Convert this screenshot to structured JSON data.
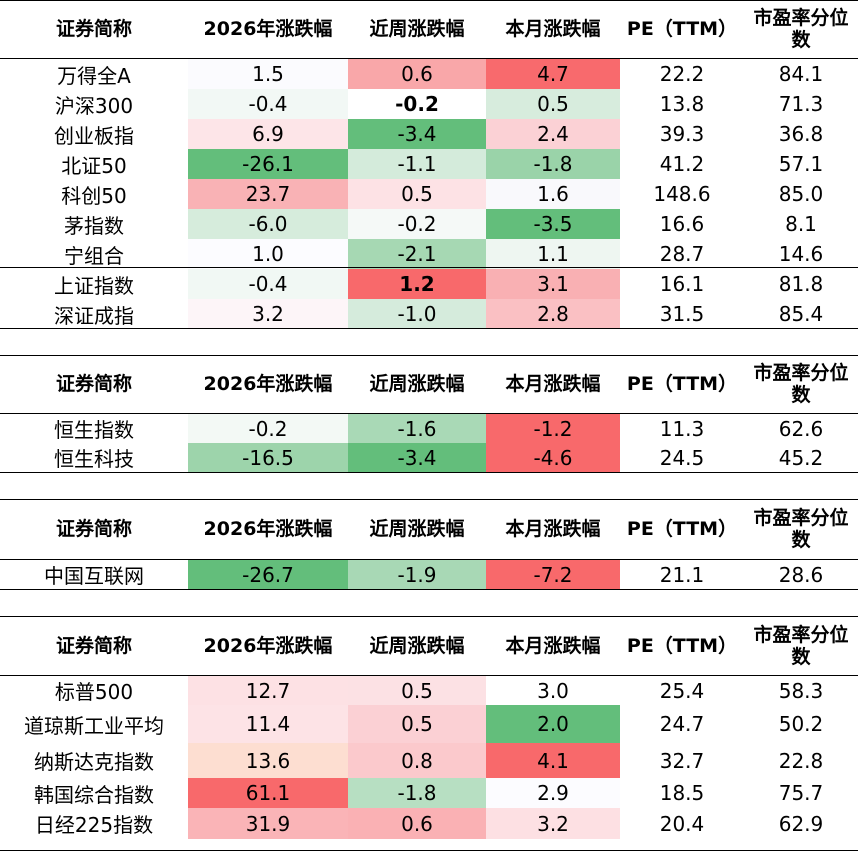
{
  "columns": [
    "证券简称",
    "2026年涨跌幅",
    "近周涨跌幅",
    "本月涨跌幅",
    "PE（TTM）",
    "市盈率分位数"
  ],
  "tables": [
    {
      "rows": [
        {
          "name": "万得全A",
          "ytd": "1.5",
          "week": "0.6",
          "month": "4.7",
          "pe": "22.2",
          "pct": "84.1",
          "colors": [
            "#fbfbfe",
            "#f9a7a9",
            "#f86a6d"
          ]
        },
        {
          "name": "沪深300",
          "ytd": "-0.4",
          "week": "-0.2",
          "month": "0.5",
          "pe": "13.8",
          "pct": "71.3",
          "colors": [
            "#f2f8f5",
            "#ffffff",
            "#d7ecdd"
          ],
          "bold": [
            false,
            true,
            false
          ]
        },
        {
          "name": "创业板指",
          "ytd": "6.9",
          "week": "-3.4",
          "month": "2.4",
          "pe": "39.3",
          "pct": "36.8",
          "colors": [
            "#fde5e8",
            "#63be7b",
            "#fbd1d5"
          ]
        },
        {
          "name": "北证50",
          "ytd": "-26.1",
          "week": "-1.1",
          "month": "-1.8",
          "pe": "41.2",
          "pct": "57.1",
          "colors": [
            "#63be7b",
            "#d4ebdb",
            "#9ad3a9"
          ]
        },
        {
          "name": "科创50",
          "ytd": "23.7",
          "week": "0.5",
          "month": "1.6",
          "pe": "148.6",
          "pct": "85.0",
          "colors": [
            "#f9b2b5",
            "#fde2e5",
            "#f9f9fc"
          ]
        },
        {
          "name": "茅指数",
          "ytd": "-6.0",
          "week": "-0.2",
          "month": "-3.5",
          "pe": "16.6",
          "pct": "8.1",
          "colors": [
            "#d6ecdc",
            "#f5f9f7",
            "#63be7b"
          ]
        },
        {
          "name": "宁组合",
          "ytd": "1.0",
          "week": "-2.1",
          "month": "1.1",
          "pe": "28.7",
          "pct": "14.6",
          "colors": [
            "#fcfcff",
            "#a6d8b3",
            "#eef6f1"
          ]
        },
        {
          "name": "上证指数",
          "ytd": "-0.4",
          "week": "1.2",
          "month": "3.1",
          "pe": "16.1",
          "pct": "81.8",
          "colors": [
            "#f1f8f4",
            "#f8696b",
            "#f9b0b3"
          ],
          "bold": [
            false,
            true,
            false
          ]
        },
        {
          "name": "深证成指",
          "ytd": "3.2",
          "week": "-1.0",
          "month": "2.8",
          "pe": "31.5",
          "pct": "85.4",
          "colors": [
            "#fdf5f8",
            "#d5ebdc",
            "#fac0c3"
          ]
        }
      ]
    },
    {
      "rows": [
        {
          "name": "恒生指数",
          "ytd": "-0.2",
          "week": "-1.6",
          "month": "-1.2",
          "pe": "11.3",
          "pct": "62.6",
          "colors": [
            "#f3f9f5",
            "#a9d9b6",
            "#f8696b"
          ]
        },
        {
          "name": "恒生科技",
          "ytd": "-16.5",
          "week": "-3.4",
          "month": "-4.6",
          "pe": "24.5",
          "pct": "45.2",
          "colors": [
            "#9dd4ab",
            "#63be7b",
            "#f8696b"
          ]
        }
      ]
    },
    {
      "rows": [
        {
          "name": "中国互联网",
          "ytd": "-26.7",
          "week": "-1.9",
          "month": "-7.2",
          "pe": "21.1",
          "pct": "28.6",
          "colors": [
            "#63be7b",
            "#a8d8b5",
            "#f8696b"
          ]
        }
      ]
    },
    {
      "rows": [
        {
          "name": "标普500",
          "ytd": "12.7",
          "week": "0.5",
          "month": "3.0",
          "pe": "25.4",
          "pct": "58.3",
          "colors": [
            "#fde1e4",
            "#fce1e4",
            "#ffffff"
          ]
        },
        {
          "name": "道琼斯工业平均",
          "ytd": "11.4",
          "week": "0.5",
          "month": "2.0",
          "pe": "24.7",
          "pct": "50.2",
          "colors": [
            "#fde3e6",
            "#fbd0d4",
            "#63be7b"
          ]
        },
        {
          "name": "纳斯达克指数",
          "ytd": "13.6",
          "week": "0.8",
          "month": "4.1",
          "pe": "32.7",
          "pct": "22.8",
          "colors": [
            "#fdded1",
            "#fbc9cc",
            "#f8696b"
          ]
        },
        {
          "name": "韩国综合指数",
          "ytd": "61.1",
          "week": "-1.8",
          "month": "2.9",
          "pe": "18.5",
          "pct": "75.7",
          "colors": [
            "#f8696b",
            "#b7dfc2",
            "#fcfcff"
          ]
        },
        {
          "name": "日经225指数",
          "ytd": "31.9",
          "week": "0.6",
          "month": "3.2",
          "pe": "20.4",
          "pct": "62.9",
          "colors": [
            "#fab4b7",
            "#fab1b4",
            "#fde0e3"
          ]
        }
      ]
    }
  ]
}
